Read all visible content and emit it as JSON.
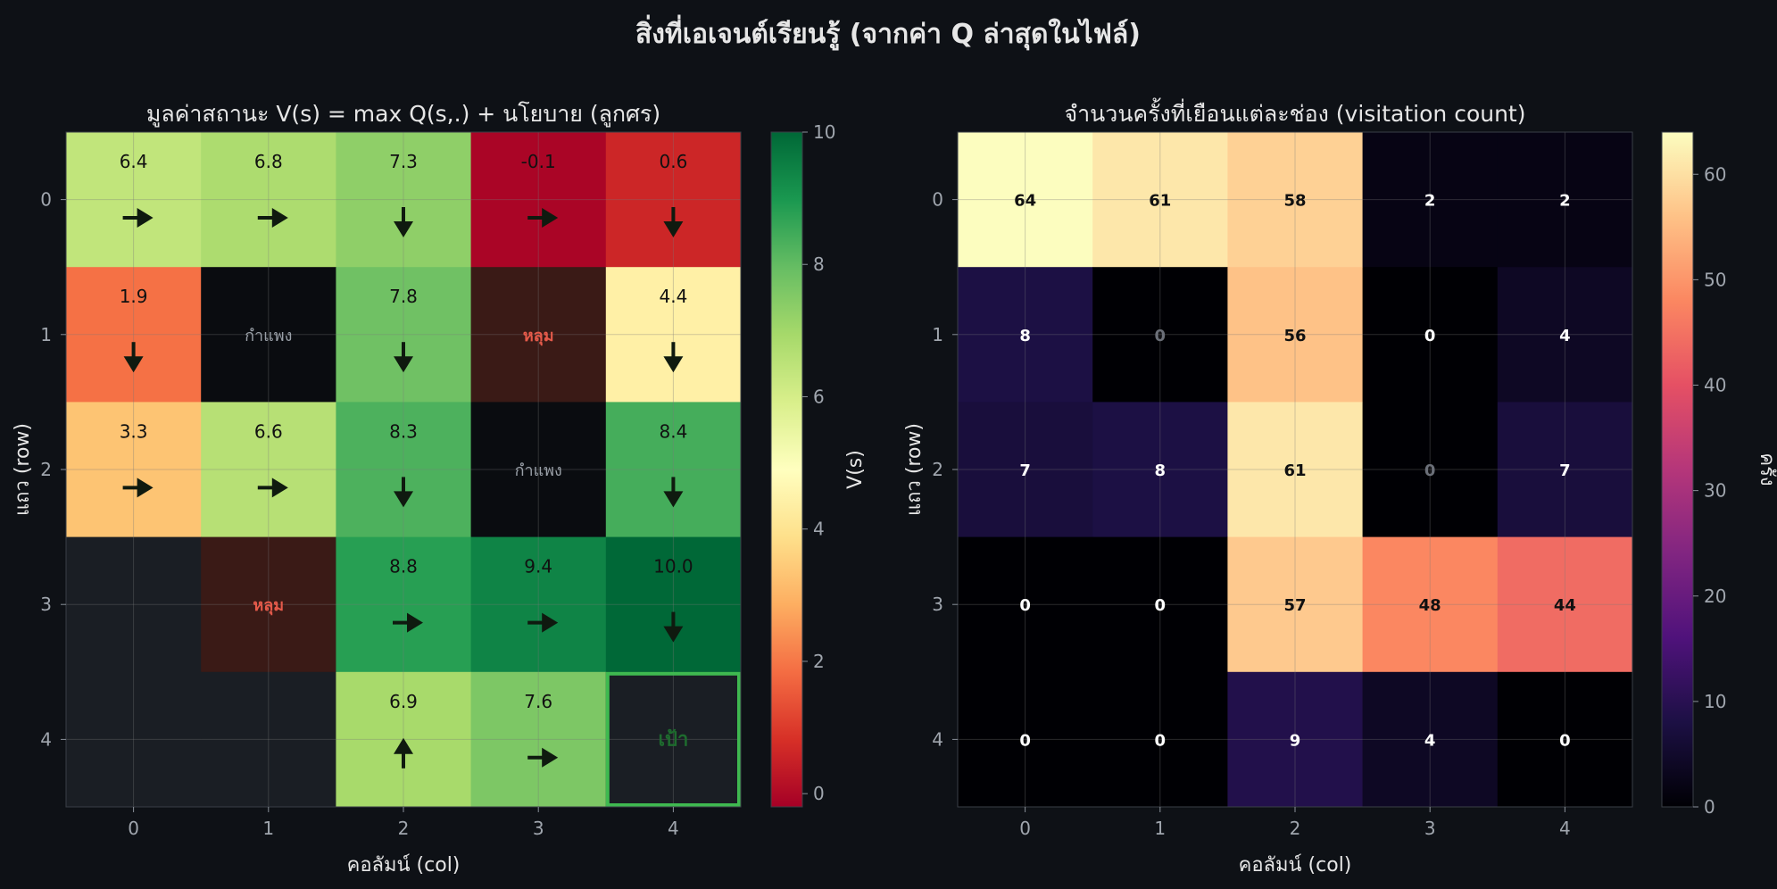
{
  "figure": {
    "suptitle": "สิ่งที่เอเจนต์เรียนรู้  (จากค่า Q ล่าสุดในไฟล์)"
  },
  "colors": {
    "background": "#0e1116",
    "text": "#e6e6e6",
    "tick_text": "#a0a6ae",
    "empty_cell": "#1a1e24",
    "wall_cell": "#0a0c10",
    "hole_cell": "#3a1a16",
    "hole_text": "#e55a4a",
    "wall_text": "#9aa0a8",
    "goal_border": "#3fb950",
    "goal_text": "#1e6b2e",
    "arrow": "#0f1a0f",
    "value_cmap": "RdYlGn",
    "count_cmap": "magma"
  },
  "chart_data": [
    {
      "type": "heatmap",
      "title": "มูลค่าสถานะ V(s) = max Q(s,.) + นโยบาย (ลูกศร)",
      "xlabel": "คอลัมน์ (col)",
      "ylabel": "แถว (row)",
      "x_ticks": [
        "0",
        "1",
        "2",
        "3",
        "4"
      ],
      "y_ticks": [
        "0",
        "1",
        "2",
        "3",
        "4"
      ],
      "grid": true,
      "colorbar": {
        "label": "V(s)",
        "range": [
          -0.2,
          10
        ],
        "ticks": [
          "0",
          "2",
          "4",
          "6",
          "8",
          "10"
        ],
        "tick_values": [
          0,
          2,
          4,
          6,
          8,
          10
        ]
      },
      "values": [
        [
          6.4,
          6.8,
          7.3,
          -0.1,
          0.6
        ],
        [
          1.9,
          null,
          7.8,
          null,
          4.4
        ],
        [
          3.3,
          6.6,
          8.3,
          null,
          8.4
        ],
        [
          null,
          null,
          8.8,
          9.4,
          10.0
        ],
        [
          null,
          null,
          6.9,
          7.6,
          null
        ]
      ],
      "value_labels": [
        [
          "6.4",
          "6.8",
          "7.3",
          "-0.1",
          "0.6"
        ],
        [
          "1.9",
          "",
          "7.8",
          "",
          "4.4"
        ],
        [
          "3.3",
          "6.6",
          "8.3",
          "",
          "8.4"
        ],
        [
          "",
          "",
          "8.8",
          "9.4",
          "10.0"
        ],
        [
          "",
          "",
          "6.9",
          "7.6",
          ""
        ]
      ],
      "policy": [
        [
          "right",
          "right",
          "down",
          "right",
          "down"
        ],
        [
          "down",
          "",
          "down",
          "",
          "down"
        ],
        [
          "right",
          "right",
          "down",
          "",
          "down"
        ],
        [
          "",
          "",
          "right",
          "right",
          "down"
        ],
        [
          "",
          "",
          "up",
          "right",
          ""
        ]
      ],
      "special_cells": [
        {
          "row": 1,
          "col": 1,
          "kind": "wall",
          "label": "กำแพง"
        },
        {
          "row": 2,
          "col": 3,
          "kind": "wall",
          "label": "กำแพง"
        },
        {
          "row": 1,
          "col": 3,
          "kind": "hole",
          "label": "หลุม"
        },
        {
          "row": 3,
          "col": 1,
          "kind": "hole",
          "label": "หลุม"
        },
        {
          "row": 4,
          "col": 4,
          "kind": "goal",
          "label": "เป้า"
        }
      ]
    },
    {
      "type": "heatmap",
      "title": "จำนวนครั้งที่เยือนแต่ละช่อง  (visitation count)",
      "xlabel": "คอลัมน์ (col)",
      "ylabel": "แถว (row)",
      "x_ticks": [
        "0",
        "1",
        "2",
        "3",
        "4"
      ],
      "y_ticks": [
        "0",
        "1",
        "2",
        "3",
        "4"
      ],
      "grid": true,
      "colorbar": {
        "label": "ครั้ง",
        "range": [
          0,
          64
        ],
        "ticks": [
          "0",
          "10",
          "20",
          "30",
          "40",
          "50",
          "60"
        ],
        "tick_values": [
          0,
          10,
          20,
          30,
          40,
          50,
          60
        ]
      },
      "values": [
        [
          64,
          61,
          58,
          2,
          2
        ],
        [
          8,
          0,
          56,
          0,
          4
        ],
        [
          7,
          8,
          61,
          0,
          7
        ],
        [
          0,
          0,
          57,
          48,
          44
        ],
        [
          0,
          0,
          9,
          4,
          0
        ]
      ],
      "value_labels": [
        [
          "64",
          "61",
          "58",
          "2",
          "2"
        ],
        [
          "8",
          "0",
          "56",
          "0",
          "4"
        ],
        [
          "7",
          "8",
          "61",
          "0",
          "7"
        ],
        [
          "0",
          "0",
          "57",
          "48",
          "44"
        ],
        [
          "0",
          "0",
          "9",
          "4",
          "0"
        ]
      ],
      "dim_labels": [
        [
          false,
          false,
          false,
          false,
          false
        ],
        [
          false,
          true,
          false,
          false,
          false
        ],
        [
          false,
          false,
          false,
          true,
          false
        ],
        [
          false,
          false,
          false,
          false,
          false
        ],
        [
          false,
          false,
          false,
          false,
          false
        ]
      ]
    }
  ]
}
